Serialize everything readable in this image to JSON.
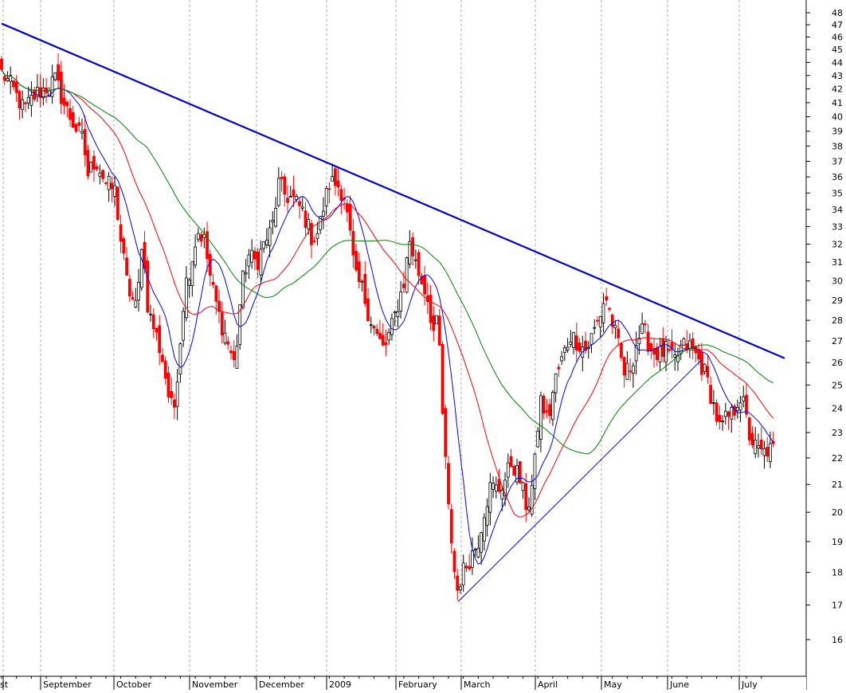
{
  "chart_data": {
    "type": "candlestick",
    "title": "",
    "xlabel": "",
    "ylabel": "",
    "ylim": [
      15.3,
      48.9
    ],
    "y_scale": "log",
    "y_ticks": [
      16,
      17,
      18,
      19,
      20,
      21,
      22,
      23,
      24,
      25,
      26,
      27,
      28,
      29,
      30,
      31,
      32,
      33,
      34,
      35,
      36,
      37,
      38,
      39,
      40,
      41,
      42,
      43,
      44,
      45,
      46,
      47,
      48
    ],
    "x_ticks": [
      "st",
      "September",
      "October",
      "November",
      "December",
      "2009",
      "February",
      "March",
      "April",
      "May",
      "June",
      "July"
    ],
    "grid": "vertical dashed at month boundaries",
    "colors": {
      "up_fill": "#ffffff",
      "down_fill": "#ff0000",
      "outline": "#000000",
      "trendline": "#0000cc",
      "ma_short": "#0000ff",
      "ma_mid": "#ff0000",
      "ma_long": "#008000",
      "grid": "#aaaaaa"
    },
    "series": [
      {
        "type": "ohlc"
      },
      {
        "type": "moving_average",
        "color": "#0000ff"
      },
      {
        "type": "moving_average",
        "color": "#ff0000"
      },
      {
        "type": "moving_average",
        "color": "#008000"
      },
      {
        "type": "trendline",
        "color": "#0000cc"
      },
      {
        "type": "trendline",
        "color": "#0000ff"
      }
    ]
  }
}
